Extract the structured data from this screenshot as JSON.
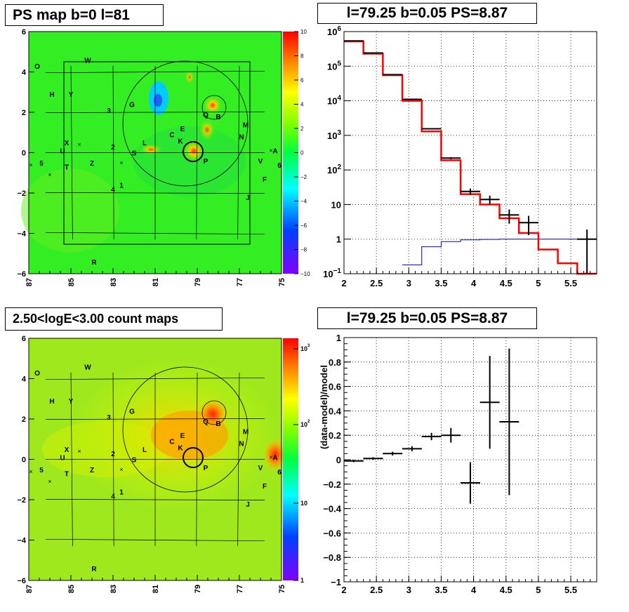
{
  "panels": {
    "ps_map": {
      "title": "PS map b=0 l=81",
      "colorbar_ticks": [
        "10",
        "8",
        "6",
        "4",
        "2",
        "0",
        "−2",
        "−4",
        "−6",
        "−8",
        "−10"
      ],
      "x_ticks": [
        "87",
        "85",
        "83",
        "81",
        "79",
        "77",
        "75"
      ],
      "y_ticks": [
        "6",
        "4",
        "2",
        "0",
        "−2",
        "−4",
        "−6"
      ]
    },
    "spectrum": {
      "title": "l=79.25 b=0.05 PS=8.87",
      "x_ticks": [
        "2",
        "2.5",
        "3",
        "3.5",
        "4",
        "4.5",
        "5",
        "5.5"
      ],
      "y_ticks": [
        {
          "base": "10",
          "exp": "6"
        },
        {
          "base": "10",
          "exp": "5"
        },
        {
          "base": "10",
          "exp": "4"
        },
        {
          "base": "10",
          "exp": "3"
        },
        {
          "base": "10",
          "exp": "2"
        },
        {
          "base": "10",
          "exp": ""
        },
        {
          "base": "1",
          "exp": ""
        },
        {
          "base": "10",
          "exp": "−1"
        }
      ]
    },
    "count_map": {
      "title": "2.50<logE<3.00 count maps",
      "colorbar_ticks": [
        {
          "base": "10",
          "exp": "3"
        },
        {
          "base": "10",
          "exp": "2"
        },
        {
          "base": "10",
          "exp": ""
        },
        {
          "base": "1",
          "exp": ""
        }
      ],
      "x_ticks": [
        "87",
        "85",
        "83",
        "81",
        "79",
        "77",
        "75"
      ],
      "y_ticks": [
        "6",
        "4",
        "2",
        "0",
        "−2",
        "−4",
        "−6"
      ]
    },
    "residual": {
      "title": "l=79.25 b=0.05 PS=8.87",
      "ylabel": "(data-model)/model",
      "x_ticks": [
        "2",
        "2.5",
        "3",
        "3.5",
        "4",
        "4.5",
        "5",
        "5.5"
      ],
      "y_ticks": [
        "1",
        "0.8",
        "0.6",
        "0.4",
        "0.2",
        "0",
        "−0.2",
        "−0.4",
        "−0.6",
        "−0.8",
        "−1"
      ]
    }
  },
  "source_labels": [
    {
      "t": "O",
      "l": 86.6,
      "b": 4.3
    },
    {
      "t": "W",
      "l": 84.2,
      "b": 4.6
    },
    {
      "t": "H",
      "l": 85.9,
      "b": 2.9
    },
    {
      "t": "Y",
      "l": 85.0,
      "b": 2.9
    },
    {
      "t": "3",
      "l": 83.2,
      "b": 2.1
    },
    {
      "t": "G",
      "l": 82.1,
      "b": 2.4
    },
    {
      "t": "Q",
      "l": 78.6,
      "b": 1.9
    },
    {
      "t": "B",
      "l": 78.0,
      "b": 1.8
    },
    {
      "t": "M",
      "l": 76.7,
      "b": 1.4
    },
    {
      "t": "E",
      "l": 79.7,
      "b": 1.2
    },
    {
      "t": "C",
      "l": 80.2,
      "b": 0.9
    },
    {
      "t": "K",
      "l": 79.8,
      "b": 0.6
    },
    {
      "t": "N",
      "l": 76.9,
      "b": 0.8
    },
    {
      "t": "X",
      "l": 85.2,
      "b": 0.5
    },
    {
      "t": "L",
      "l": 81.5,
      "b": 0.5
    },
    {
      "t": "2",
      "l": 83.0,
      "b": 0.3
    },
    {
      "t": "S",
      "l": 82.0,
      "b": 0.0
    },
    {
      "t": "U",
      "l": 85.4,
      "b": 0.1
    },
    {
      "t": "A",
      "l": 75.3,
      "b": 0.1
    },
    {
      "t": "5",
      "l": 86.4,
      "b": -0.5
    },
    {
      "t": "Z",
      "l": 84.0,
      "b": -0.5
    },
    {
      "t": "T",
      "l": 85.2,
      "b": -0.7
    },
    {
      "t": "P",
      "l": 78.6,
      "b": -0.4
    },
    {
      "t": "V",
      "l": 76.0,
      "b": -0.4
    },
    {
      "t": "6",
      "l": 75.1,
      "b": -0.6
    },
    {
      "t": "F",
      "l": 75.8,
      "b": -1.3
    },
    {
      "t": "1",
      "l": 82.6,
      "b": -1.6
    },
    {
      "t": "4",
      "l": 83.0,
      "b": -1.8
    },
    {
      "t": "J",
      "l": 76.6,
      "b": -2.2
    },
    {
      "t": "R",
      "l": 83.9,
      "b": -5.4
    }
  ],
  "colors": {
    "model": "#ff0000",
    "data": "#000000",
    "background": "#0000cc"
  },
  "chart_data": [
    {
      "type": "heatmap",
      "title": "PS map b=0 l=81",
      "xlabel": "",
      "ylabel": "",
      "xlim": [
        87,
        75
      ],
      "ylim": [
        -6,
        6
      ],
      "zlim": [
        -10,
        10
      ],
      "annotations": [
        "source circle at (79.25, 0.05)"
      ]
    },
    {
      "type": "line",
      "title": "l=79.25 b=0.05 PS=8.87",
      "xlim": [
        2,
        5.9
      ],
      "ylim": [
        0.1,
        1000000
      ],
      "y_log": true,
      "grid": true,
      "series": [
        {
          "x": [
            2.0,
            2.3,
            2.6,
            2.9,
            3.2,
            3.5,
            3.8,
            4.1,
            4.4,
            4.7,
            5.0,
            5.3,
            5.6
          ],
          "values": [
            520000,
            230000,
            55000,
            10000,
            1300,
            190,
            20,
            10,
            4,
            1.5,
            0.5,
            0.2,
            0.1
          ]
        },
        {
          "x": [
            2.9,
            3.2,
            3.5,
            3.8,
            4.1,
            4.4,
            4.7,
            5.0,
            5.3,
            5.6
          ],
          "values": [
            0.18,
            0.6,
            0.85,
            0.95,
            0.98,
            1.0,
            1.0,
            1.0,
            1.0,
            1.0
          ]
        },
        {
          "x": [
            2.15,
            2.45,
            2.75,
            3.05,
            3.35,
            3.65,
            3.95,
            4.25,
            4.55,
            4.85,
            5.75
          ],
          "values": [
            540000,
            240000,
            57000,
            11000,
            1550,
            220,
            24,
            14,
            5,
            3,
            1
          ],
          "yerr": [
            1000,
            700,
            300,
            100,
            40,
            15,
            5,
            4,
            2.2,
            1.7,
            0.9
          ]
        }
      ]
    },
    {
      "type": "heatmap",
      "title": "2.50<logE<3.00 count maps",
      "xlim": [
        87,
        75
      ],
      "ylim": [
        -6,
        6
      ],
      "zlim": [
        1,
        1500
      ],
      "z_log": true
    },
    {
      "type": "scatter",
      "title": "l=79.25 b=0.05 PS=8.87",
      "ylabel": "(data-model)/model",
      "xlim": [
        2,
        5.9
      ],
      "ylim": [
        -1,
        1
      ],
      "grid": true,
      "x": [
        2.15,
        2.45,
        2.75,
        3.05,
        3.35,
        3.65,
        3.95,
        4.25,
        4.55
      ],
      "values": [
        -0.01,
        0.01,
        0.05,
        0.09,
        0.19,
        0.2,
        -0.19,
        0.47,
        0.31
      ],
      "yerr": [
        0.01,
        0.01,
        0.015,
        0.02,
        0.03,
        0.06,
        0.17,
        0.38,
        0.6
      ]
    }
  ]
}
